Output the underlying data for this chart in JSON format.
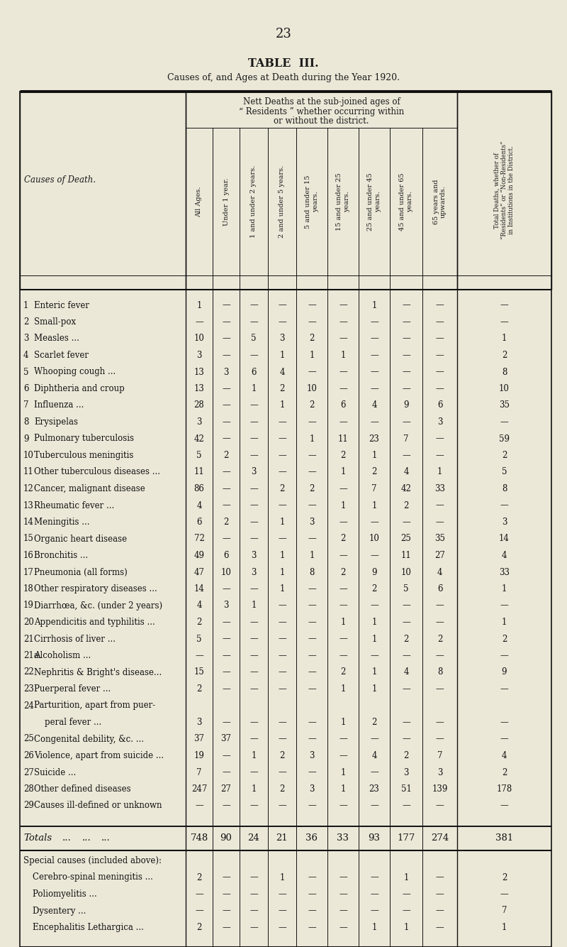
{
  "page_number": "23",
  "title1": "TABLE  III.",
  "title2": "Causes of, and Ages at Death during the Year 1920.",
  "bg_color": "#ece8d8",
  "col_headers_sub": [
    "All Ages.",
    "Under 1 year.",
    "1 and under 2 years.",
    "2 and under 5 years.",
    "5 and under 15\nyears.",
    "15 and under 25\nyears.",
    "25 and under 45\nyears.",
    "45 and under 65\nyears.",
    "65 years and\nupwards."
  ],
  "rows": [
    {
      "num": "1",
      "cause": "Enteric fever",
      "trail": " ...          ...",
      "data": [
        "1",
        "—",
        "—",
        "—",
        "—",
        "—",
        "1",
        "—",
        "—"
      ],
      "total": "—"
    },
    {
      "num": "2",
      "cause": "Small-pox",
      "trail": " ...          ...",
      "data": [
        "—",
        "—",
        "—",
        "—",
        "—",
        "—",
        "—",
        "—",
        "—"
      ],
      "total": "—"
    },
    {
      "num": "3",
      "cause": "Measles ...",
      "trail": "         ...",
      "data": [
        "10",
        "—",
        "5",
        "3",
        "2",
        "—",
        "—",
        "—",
        "—"
      ],
      "total": "1"
    },
    {
      "num": "4",
      "cause": "Scarlet fever",
      "trail": " ...          ...",
      "data": [
        "3",
        "—",
        "—",
        "1",
        "1",
        "1",
        "—",
        "—",
        "—"
      ],
      "total": "2"
    },
    {
      "num": "5",
      "cause": "Whooping cough ...",
      "trail": "   ...",
      "data": [
        "13",
        "3",
        "6",
        "4",
        "—",
        "—",
        "—",
        "—",
        "—"
      ],
      "total": "8"
    },
    {
      "num": "6",
      "cause": "Diphtheria and croup",
      "trail": " ...",
      "data": [
        "13",
        "—",
        "1",
        "2",
        "10",
        "—",
        "—",
        "—",
        "—"
      ],
      "total": "10"
    },
    {
      "num": "7",
      "cause": "Influenza ...",
      "trail": "   ...",
      "data": [
        "28",
        "—",
        "—",
        "1",
        "2",
        "6",
        "4",
        "9",
        "6"
      ],
      "total": "35"
    },
    {
      "num": "8",
      "cause": "Erysipelas",
      "trail": " ...          ...",
      "data": [
        "3",
        "—",
        "—",
        "—",
        "—",
        "—",
        "—",
        "—",
        "3"
      ],
      "total": "—"
    },
    {
      "num": "9",
      "cause": "Pulmonary tuberculosis",
      "trail": " ...",
      "data": [
        "42",
        "—",
        "—",
        "—",
        "1",
        "11",
        "23",
        "7",
        "—"
      ],
      "total": "59"
    },
    {
      "num": "10",
      "cause": "Tuberculous meningitis",
      "trail": " ...",
      "data": [
        "5",
        "2",
        "—",
        "—",
        "—",
        "2",
        "1",
        "—",
        "—"
      ],
      "total": "2"
    },
    {
      "num": "11",
      "cause": "Other tuberculous diseases ...",
      "trail": "",
      "data": [
        "11",
        "—",
        "3",
        "—",
        "—",
        "1",
        "2",
        "4",
        "1"
      ],
      "total": "5"
    },
    {
      "num": "12",
      "cause": "Cancer, malignant disease",
      "trail": " ...",
      "data": [
        "86",
        "—",
        "—",
        "2",
        "2",
        "—",
        "7",
        "42",
        "33"
      ],
      "total": "8"
    },
    {
      "num": "13",
      "cause": "Rheumatic fever ...",
      "trail": "   ...",
      "data": [
        "4",
        "—",
        "—",
        "—",
        "—",
        "1",
        "1",
        "2",
        "—"
      ],
      "total": "—"
    },
    {
      "num": "14",
      "cause": "Meningitis ...",
      "trail": "   ...",
      "data": [
        "6",
        "2",
        "—",
        "1",
        "3",
        "—",
        "—",
        "—",
        "—"
      ],
      "total": "3"
    },
    {
      "num": "15",
      "cause": "Organic heart disease",
      "trail": " ...",
      "data": [
        "72",
        "—",
        "—",
        "—",
        "—",
        "2",
        "10",
        "25",
        "35"
      ],
      "total": "14"
    },
    {
      "num": "16",
      "cause": "Bronchitis ...",
      "trail": "   ...",
      "data": [
        "49",
        "6",
        "3",
        "1",
        "1",
        "—",
        "—",
        "11",
        "27"
      ],
      "total": "4"
    },
    {
      "num": "17",
      "cause": "Pneumonia (all forms)",
      "trail": " ...",
      "data": [
        "47",
        "10",
        "3",
        "1",
        "8",
        "2",
        "9",
        "10",
        "4"
      ],
      "total": "33"
    },
    {
      "num": "18",
      "cause": "Other respiratory diseases ...",
      "trail": "",
      "data": [
        "14",
        "—",
        "—",
        "1",
        "—",
        "—",
        "2",
        "5",
        "6"
      ],
      "total": "1"
    },
    {
      "num": "19",
      "cause": "Diarrhœa, &c. (under 2 years)",
      "trail": "",
      "data": [
        "4",
        "3",
        "1",
        "—",
        "—",
        "—",
        "—",
        "—",
        "—"
      ],
      "total": "—"
    },
    {
      "num": "20",
      "cause": "Appendicitis and typhilitis ...",
      "trail": "",
      "data": [
        "2",
        "—",
        "—",
        "—",
        "—",
        "1",
        "1",
        "—",
        "—"
      ],
      "total": "1"
    },
    {
      "num": "21",
      "cause": "Cirrhosis of liver ...",
      "trail": "   ...",
      "data": [
        "5",
        "—",
        "—",
        "—",
        "—",
        "—",
        "1",
        "2",
        "2"
      ],
      "total": "2"
    },
    {
      "num": "21a",
      "cause": "Alcoholism ...",
      "trail": "   ...",
      "data": [
        "—",
        "—",
        "—",
        "—",
        "—",
        "—",
        "—",
        "—",
        "—"
      ],
      "total": "—"
    },
    {
      "num": "22",
      "cause": "Nephritis & Bright's disease...",
      "trail": "",
      "data": [
        "15",
        "—",
        "—",
        "—",
        "—",
        "2",
        "1",
        "4",
        "8"
      ],
      "total": "9"
    },
    {
      "num": "23",
      "cause": "Puerperal fever ...",
      "trail": "   ...",
      "data": [
        "2",
        "—",
        "—",
        "—",
        "—",
        "1",
        "1",
        "—",
        "—"
      ],
      "total": "—"
    },
    {
      "num": "24",
      "cause": "Parturition, apart from puer-",
      "trail": "",
      "data": [
        null,
        null,
        null,
        null,
        null,
        null,
        null,
        null,
        null
      ],
      "total": null,
      "multiline": true
    },
    {
      "num": "",
      "cause": "    peral fever ...",
      "trail": "   ...",
      "data": [
        "3",
        "—",
        "—",
        "—",
        "—",
        "1",
        "2",
        "—",
        "—"
      ],
      "total": "—"
    },
    {
      "num": "25",
      "cause": "Congenital debility, &c. ...",
      "trail": "",
      "data": [
        "37",
        "37",
        "—",
        "—",
        "—",
        "—",
        "—",
        "—",
        "—"
      ],
      "total": "—"
    },
    {
      "num": "26",
      "cause": "Violence, apart from suicide ...",
      "trail": "",
      "data": [
        "19",
        "—",
        "1",
        "2",
        "3",
        "—",
        "4",
        "2",
        "7"
      ],
      "total": "4"
    },
    {
      "num": "27",
      "cause": "Suicide ...",
      "trail": "   ...",
      "data": [
        "7",
        "—",
        "—",
        "—",
        "—",
        "1",
        "—",
        "3",
        "3"
      ],
      "total": "2"
    },
    {
      "num": "28",
      "cause": "Other defined diseases",
      "trail": " ...",
      "data": [
        "247",
        "27",
        "1",
        "2",
        "3",
        "1",
        "23",
        "51",
        "139"
      ],
      "total": "178"
    },
    {
      "num": "29",
      "cause": "Causes ill-defined or unknown",
      "trail": "",
      "data": [
        "—",
        "—",
        "—",
        "—",
        "—",
        "—",
        "—",
        "—",
        "—"
      ],
      "total": "—"
    }
  ],
  "totals_row": [
    "748",
    "90",
    "24",
    "21",
    "36",
    "33",
    "93",
    "177",
    "274",
    "381"
  ],
  "special_rows": [
    {
      "cause": "Cerebro-spinal meningitis ...",
      "data": [
        "2",
        "—",
        "—",
        "1",
        "—",
        "—",
        "—",
        "1",
        "—"
      ],
      "total": "2"
    },
    {
      "cause": "Poliomyelitis ...",
      "data": [
        "—",
        "—",
        "—",
        "—",
        "—",
        "—",
        "—",
        "—",
        "—"
      ],
      "total": "—"
    },
    {
      "cause": "Dysentery ...",
      "data": [
        "—",
        "—",
        "—",
        "—",
        "—",
        "—",
        "—",
        "—",
        "—"
      ],
      "total": "7"
    },
    {
      "cause": "Encephalitis Lethargica ...",
      "data": [
        "2",
        "—",
        "—",
        "—",
        "—",
        "—",
        "1",
        "1",
        "—"
      ],
      "total": "1"
    }
  ]
}
